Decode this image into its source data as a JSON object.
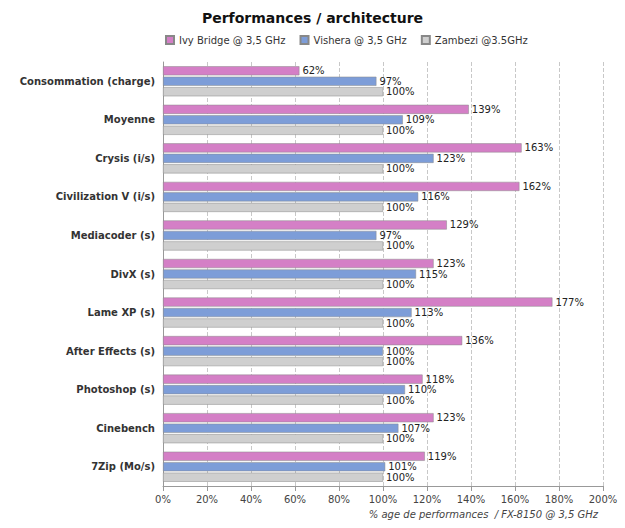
{
  "chart_data": {
    "type": "bar",
    "title": "Performances / architecture",
    "x_label": "% age de performances  / FX-8150 @ 3,5 GHz",
    "orientation": "horizontal",
    "categories": [
      "Consommation (charge)",
      "Moyenne",
      "Crysis (i/s)",
      "Civilization V (i/s)",
      "Mediacoder (s)",
      "DivX (s)",
      "Lame XP (s)",
      "After Effects (s)",
      "Photoshop (s)",
      "Cinebench",
      "7Zip (Mo/s)"
    ],
    "series": [
      {
        "name": "Ivy Bridge @ 3,5 GHz",
        "color": "#d47fc6",
        "values": [
          62,
          139,
          163,
          162,
          129,
          123,
          177,
          136,
          118,
          123,
          119
        ],
        "value_labels": [
          "62%",
          "139%",
          "163%",
          "162%",
          "129%",
          "123%",
          "177%",
          "136%",
          "118%",
          "123%",
          "119%"
        ]
      },
      {
        "name": "Vishera @ 3,5 GHz",
        "color": "#7d9dd8",
        "values": [
          97,
          109,
          123,
          116,
          97,
          115,
          113,
          100,
          110,
          107,
          101
        ],
        "value_labels": [
          "97%",
          "109%",
          "123%",
          "116%",
          "97%",
          "115%",
          "113%",
          "100%",
          "110%",
          "107%",
          "101%"
        ]
      },
      {
        "name": "Zambezi @3.5GHz",
        "color": "#cfcfcf",
        "values": [
          100,
          100,
          100,
          100,
          100,
          100,
          100,
          100,
          100,
          100,
          100
        ],
        "value_labels": [
          "100%",
          "100%",
          "100%",
          "100%",
          "100%",
          "100%",
          "100%",
          "100%",
          "100%",
          "100%",
          "100%"
        ]
      }
    ],
    "xlim": [
      0,
      200
    ],
    "xticks": [
      {
        "value": 0,
        "label": "0%"
      },
      {
        "value": 20,
        "label": "20%"
      },
      {
        "value": 40,
        "label": "40%"
      },
      {
        "value": 60,
        "label": "60%"
      },
      {
        "value": 80,
        "label": "80%"
      },
      {
        "value": 100,
        "label": "100%"
      },
      {
        "value": 120,
        "label": "120%"
      },
      {
        "value": 140,
        "label": "140%"
      },
      {
        "value": 160,
        "label": "160%"
      },
      {
        "value": 180,
        "label": "180%"
      },
      {
        "value": 200,
        "label": "200%"
      }
    ],
    "grid": true,
    "legend": "top",
    "data_labels": true
  }
}
